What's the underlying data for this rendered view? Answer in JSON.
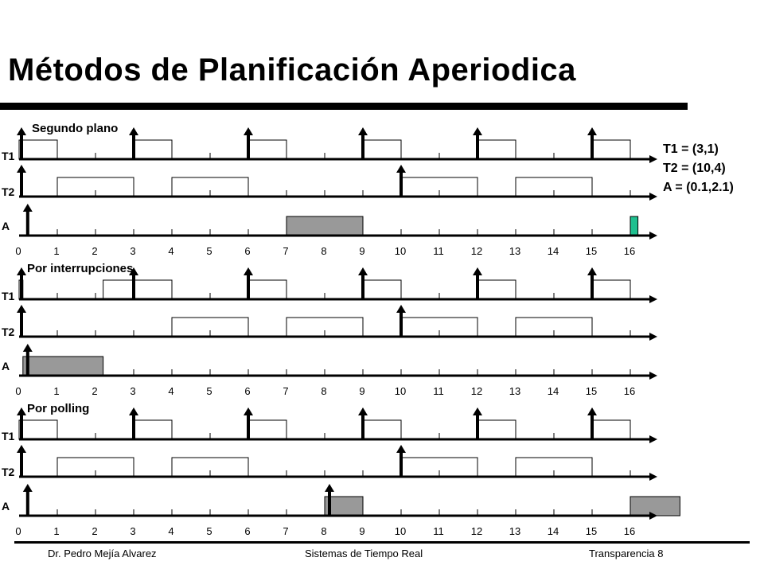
{
  "title": "Métodos de Planificación Aperiodica",
  "params": [
    "T1 = (3,1)",
    "T2 = (10,4)",
    "A = (0.1,2.1)"
  ],
  "axis_ticks": [
    "0",
    "1",
    "2",
    "3",
    "4",
    "5",
    "6",
    "7",
    "8",
    "9",
    "10",
    "11",
    "12",
    "13",
    "14",
    "15",
    "16"
  ],
  "row_labels": {
    "t1": "T1",
    "t2": "T2",
    "a": "A"
  },
  "colors": {
    "aperiodic": "#999999",
    "aperiodic_alt": "#1fbf8f"
  },
  "sections": [
    {
      "label": "Segundo plano",
      "t1_arrivals": [
        0,
        3,
        6,
        9,
        12,
        15
      ],
      "t1_exec": [
        [
          0,
          1
        ],
        [
          3,
          4
        ],
        [
          6,
          7
        ],
        [
          9,
          10
        ],
        [
          12,
          13
        ],
        [
          15,
          16
        ]
      ],
      "t2_arrivals": [
        0,
        10
      ],
      "t2_exec": [
        [
          1,
          3
        ],
        [
          4,
          6
        ],
        [
          10,
          12
        ],
        [
          13,
          15
        ]
      ],
      "a_arrivals": [
        0.1
      ],
      "a_exec": [
        [
          7,
          9,
          "aperiodic"
        ],
        [
          16,
          16.2,
          "aperiodic_alt"
        ]
      ]
    },
    {
      "label": "Por interrupciones",
      "t1_arrivals": [
        0,
        3,
        6,
        9,
        12,
        15
      ],
      "t1_exec": [
        [
          0,
          0.1
        ],
        [
          2.2,
          3
        ],
        [
          3,
          4
        ],
        [
          6,
          7
        ],
        [
          9,
          10
        ],
        [
          12,
          13
        ],
        [
          15,
          16
        ]
      ],
      "t2_arrivals": [
        0,
        10
      ],
      "t2_exec": [
        [
          4,
          6
        ],
        [
          7,
          9
        ],
        [
          10,
          12
        ],
        [
          13,
          15
        ]
      ],
      "a_arrivals": [
        0.1
      ],
      "a_exec": [
        [
          0.1,
          2.2,
          "aperiodic"
        ]
      ]
    },
    {
      "label": "Por polling",
      "t1_arrivals": [
        0,
        3,
        6,
        9,
        12,
        15
      ],
      "t1_exec": [
        [
          0,
          1
        ],
        [
          3,
          4
        ],
        [
          6,
          7
        ],
        [
          9,
          10
        ],
        [
          12,
          13
        ],
        [
          15,
          16
        ]
      ],
      "t2_arrivals": [
        0,
        10
      ],
      "t2_exec": [
        [
          1,
          3
        ],
        [
          4,
          6
        ],
        [
          10,
          12
        ],
        [
          13,
          15
        ]
      ],
      "a_arrivals": [
        0.1,
        8
      ],
      "a_exec": [
        [
          8,
          9,
          "aperiodic"
        ],
        [
          16,
          17.3,
          "aperiodic"
        ]
      ]
    }
  ],
  "footer": {
    "left": "Dr. Pedro Mejía Alvarez",
    "center": "Sistemas de Tiempo Real",
    "right": "Transparencia  8"
  }
}
